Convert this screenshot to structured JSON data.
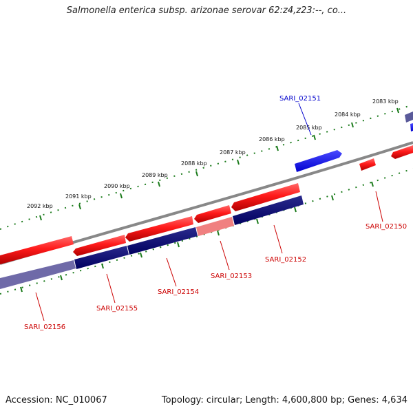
{
  "title": "Salmonella enterica subsp. arizonae serovar 62:z4,z23:--, co...",
  "footer": {
    "accession": "Accession: NC_010067",
    "topology": "Topology: circular; Length: 4,600,800 bp; Genes: 4,634"
  },
  "colors": {
    "forward_gene": "#e00000",
    "reverse_gene": "#000070",
    "highlight_gene": "#0000e0",
    "backbone": "#808080",
    "tick": "#1a7a1a"
  },
  "kbp_labels": [
    "2083 kbp",
    "2084 kbp",
    "2085 kbp",
    "2086 kbp",
    "2087 kbp",
    "2088 kbp",
    "2089 kbp",
    "2090 kbp",
    "2091 kbp",
    "2092 kbp"
  ],
  "gene_labels": [
    "SARI_02151",
    "SARI_02150",
    "SARI_02152",
    "SARI_02153",
    "SARI_02154",
    "SARI_02155",
    "SARI_02156"
  ]
}
